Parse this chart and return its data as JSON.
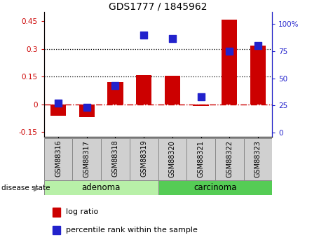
{
  "title": "GDS1777 / 1845962",
  "samples": [
    "GSM88316",
    "GSM88317",
    "GSM88318",
    "GSM88319",
    "GSM88320",
    "GSM88321",
    "GSM88322",
    "GSM88323"
  ],
  "log_ratio": [
    -0.06,
    -0.07,
    0.12,
    0.16,
    0.155,
    -0.01,
    0.46,
    0.32
  ],
  "percentile": [
    27,
    23,
    43,
    90,
    87,
    33,
    75,
    80
  ],
  "groups": [
    {
      "label": "adenoma",
      "indices": [
        0,
        1,
        2,
        3
      ],
      "color": "#b8f0a8"
    },
    {
      "label": "carcinoma",
      "indices": [
        4,
        5,
        6,
        7
      ],
      "color": "#55cc55"
    }
  ],
  "ylim_left": [
    -0.175,
    0.5
  ],
  "ylim_right": [
    -3.888,
    22.22
  ],
  "yticks_left": [
    -0.15,
    0.0,
    0.15,
    0.3,
    0.45
  ],
  "yticks_right_vals": [
    0,
    25,
    50,
    75,
    100
  ],
  "yticks_right_labels": [
    "0",
    "25",
    "50",
    "75",
    "100%"
  ],
  "hlines": [
    0.15,
    0.3
  ],
  "bar_color": "#cc0000",
  "dot_color": "#2222cc",
  "bar_width": 0.55,
  "dot_size": 45,
  "zero_line_color": "#cc0000",
  "grid_color": "black",
  "label_bg": "#d0d0d0",
  "legend_log_ratio": "log ratio",
  "legend_percentile": "percentile rank within the sample",
  "disease_state_label": "disease state"
}
